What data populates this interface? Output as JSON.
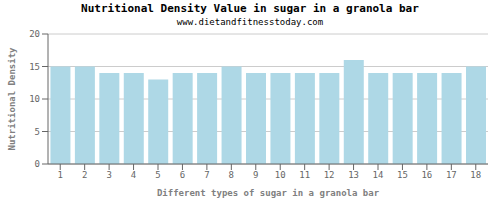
{
  "chart_data": {
    "type": "bar",
    "title": "Nutritional Density Value in sugar in a granola bar",
    "subtitle": "www.dietandfitnesstoday.com",
    "xlabel": "Different types of sugar in a granola bar",
    "ylabel": "Nutritional Density",
    "categories": [
      1,
      2,
      3,
      4,
      5,
      6,
      7,
      8,
      9,
      10,
      11,
      12,
      13,
      14,
      15,
      16,
      17,
      18
    ],
    "values": [
      15,
      15,
      14,
      14,
      13,
      14,
      14,
      15,
      14,
      14,
      14,
      14,
      16,
      14,
      14,
      14,
      14,
      15
    ],
    "color": "#aed8e6",
    "ylim": [
      0,
      20
    ],
    "yticks": [
      0,
      5,
      10,
      15,
      20
    ],
    "grid": true
  }
}
